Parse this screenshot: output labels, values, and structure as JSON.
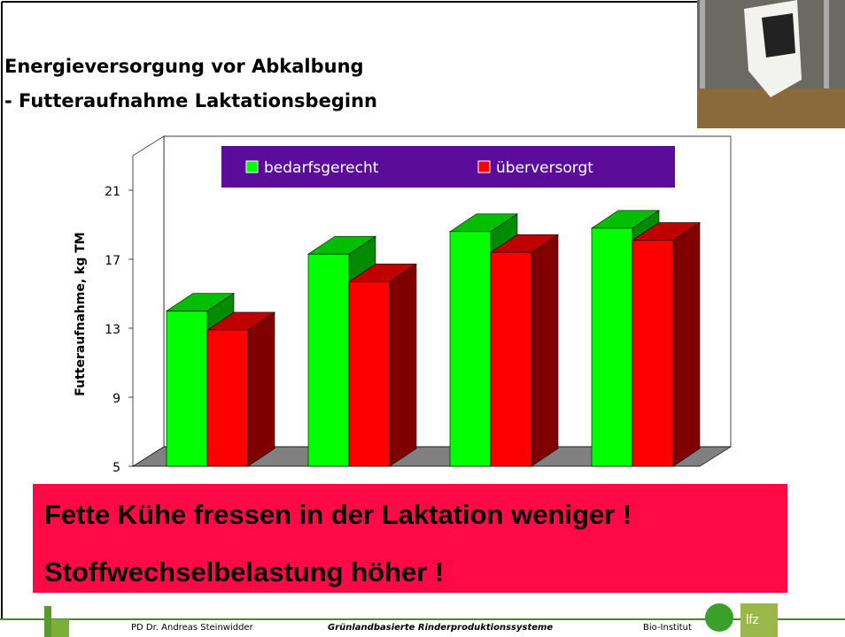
{
  "slide": {
    "title_lines": [
      "Energieversorgung vor Abkalbung",
      "- Futteraufnahme Laktationsbeginn"
    ],
    "banner_lines": [
      "Fette Kühe fressen in der Laktation weniger !",
      "Stoffwechselbelastung höher !"
    ],
    "footer": {
      "author": "PD Dr. Andreas Steinwidder",
      "topic": "Grünlandbasierte Rinderproduktionssysteme",
      "institute": "Bio-Institut",
      "logo": "lfz"
    }
  },
  "chart_data": {
    "type": "bar",
    "y_label": "Futteraufnahme, kg TM",
    "categories": [
      null,
      null,
      null,
      null
    ],
    "series": [
      {
        "name": "bedarfsgerecht",
        "color": "#00ff00",
        "values": [
          14.0,
          17.3,
          18.6,
          18.8
        ]
      },
      {
        "name": "überversorgt",
        "color": "#ff0000",
        "values": [
          12.9,
          15.7,
          17.4,
          18.1
        ]
      }
    ],
    "ylim": [
      5,
      23
    ],
    "yticks": [
      5,
      9,
      13,
      17,
      21
    ],
    "grid": false,
    "legend": "top"
  }
}
